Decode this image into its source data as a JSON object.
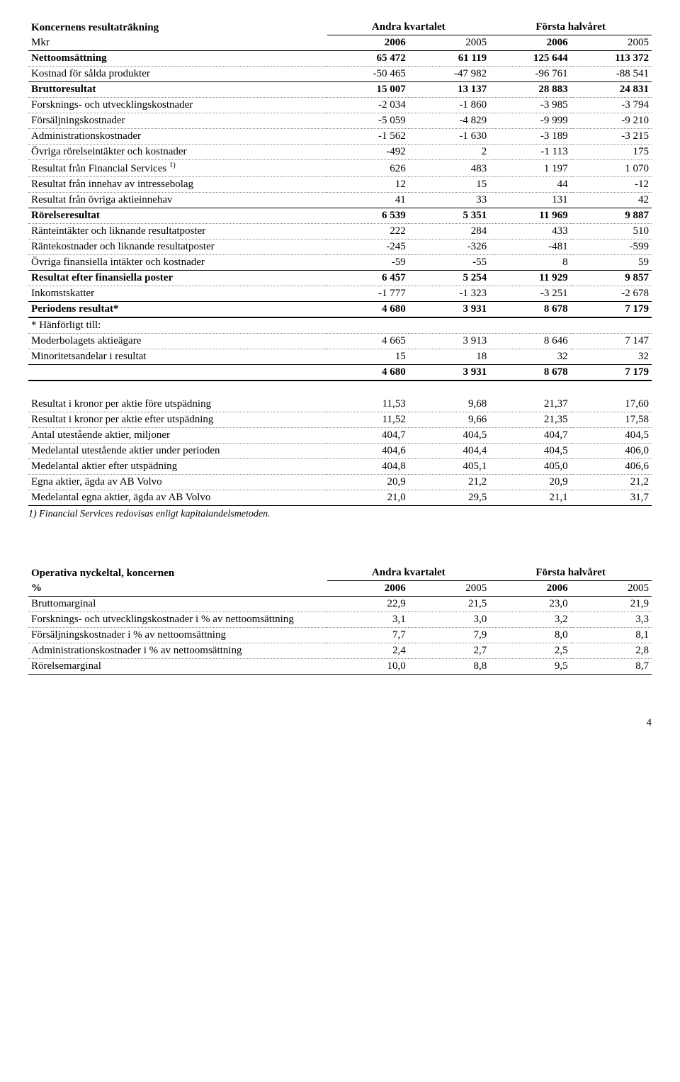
{
  "t1": {
    "title": "Koncernens resultaträkning",
    "colgroup1": "Andra kvartalet",
    "colgroup2": "Första halvåret",
    "subhead_label": "Mkr",
    "years": [
      "2006",
      "2005",
      "2006",
      "2005"
    ],
    "rows": [
      {
        "label": "Nettoomsättning",
        "bold": true,
        "vals": [
          "65 472",
          "61 119",
          "125 644",
          "113 372"
        ],
        "dotted": true
      },
      {
        "label": "Kostnad för sålda produkter",
        "vals": [
          "-50 465",
          "-47 982",
          "-96 761",
          "-88 541"
        ],
        "ul": true
      },
      {
        "label": "Bruttoresultat",
        "bold": true,
        "vals": [
          "15 007",
          "13 137",
          "28 883",
          "24 831"
        ],
        "dotted": true
      },
      {
        "label": "Forsknings- och utvecklingskostnader",
        "vals": [
          "-2 034",
          "-1 860",
          "-3 985",
          "-3 794"
        ],
        "dotted": true
      },
      {
        "label": "Försäljningskostnader",
        "vals": [
          "-5 059",
          "-4 829",
          "-9 999",
          "-9 210"
        ],
        "dotted": true
      },
      {
        "label": "Administrationskostnader",
        "vals": [
          "-1 562",
          "-1 630",
          "-3 189",
          "-3 215"
        ],
        "dotted": true
      },
      {
        "label": "Övriga rörelseintäkter och kostnader",
        "vals": [
          "-492",
          "2",
          "-1 113",
          "175"
        ],
        "dotted": true
      },
      {
        "label": "Resultat från Financial Services",
        "sup": "1)",
        "vals": [
          "626",
          "483",
          "1 197",
          "1 070"
        ],
        "dotted": true
      },
      {
        "label": "Resultat från innehav av intressebolag",
        "vals": [
          "12",
          "15",
          "44",
          "-12"
        ],
        "dotted": true
      },
      {
        "label": "Resultat från övriga aktieinnehav",
        "vals": [
          "41",
          "33",
          "131",
          "42"
        ],
        "ul": true
      },
      {
        "label": "Rörelseresultat",
        "bold": true,
        "vals": [
          "6 539",
          "5 351",
          "11 969",
          "9 887"
        ],
        "dotted": true
      },
      {
        "label": "Ränteintäkter och liknande resultatposter",
        "vals": [
          "222",
          "284",
          "433",
          "510"
        ],
        "dotted": true
      },
      {
        "label": "Räntekostnader och liknande resultatposter",
        "vals": [
          "-245",
          "-326",
          "-481",
          "-599"
        ],
        "dotted": true
      },
      {
        "label": "Övriga finansiella intäkter och kostnader",
        "vals": [
          "-59",
          "-55",
          "8",
          "59"
        ],
        "ul": true
      },
      {
        "label": "Resultat efter finansiella poster",
        "bold": true,
        "vals": [
          "6 457",
          "5 254",
          "11 929",
          "9 857"
        ],
        "dotted": true
      },
      {
        "label": "Inkomstskatter",
        "vals": [
          "-1 777",
          "-1 323",
          "-3 251",
          "-2 678"
        ],
        "ul": true
      },
      {
        "label": "Periodens resultat*",
        "bold": true,
        "vals": [
          "4 680",
          "3 931",
          "8 678",
          "7 179"
        ],
        "thick": true
      },
      {
        "label": "* Hänförligt till:",
        "vals": [
          "",
          "",
          "",
          ""
        ],
        "dotted": true
      },
      {
        "label": "Moderbolagets aktieägare",
        "vals": [
          "4 665",
          "3 913",
          "8 646",
          "7 147"
        ],
        "dotted": true
      },
      {
        "label": "Minoritetsandelar i resultat",
        "vals": [
          "15",
          "18",
          "32",
          "32"
        ],
        "ul": true
      },
      {
        "label": "",
        "bold": true,
        "vals": [
          "4 680",
          "3 931",
          "8 678",
          "7 179"
        ],
        "thick": true
      }
    ],
    "block2": [
      {
        "label": "Resultat i kronor per aktie före utspädning",
        "vals": [
          "11,53",
          "9,68",
          "21,37",
          "17,60"
        ],
        "dotted": true
      },
      {
        "label": "Resultat i kronor per aktie efter utspädning",
        "vals": [
          "11,52",
          "9,66",
          "21,35",
          "17,58"
        ],
        "dotted": true
      },
      {
        "label": "Antal utestående aktier, miljoner",
        "vals": [
          "404,7",
          "404,5",
          "404,7",
          "404,5"
        ],
        "dotted": true
      },
      {
        "label": "Medelantal utestående aktier under perioden",
        "vals": [
          "404,6",
          "404,4",
          "404,5",
          "406,0"
        ],
        "dotted": true
      },
      {
        "label": "Medelantal aktier efter utspädning",
        "vals": [
          "404,8",
          "405,1",
          "405,0",
          "406,6"
        ],
        "dotted": true
      },
      {
        "label": "Egna aktier, ägda av AB Volvo",
        "vals": [
          "20,9",
          "21,2",
          "20,9",
          "21,2"
        ],
        "dotted": true
      },
      {
        "label": "Medelantal egna aktier, ägda av AB Volvo",
        "vals": [
          "21,0",
          "29,5",
          "21,1",
          "31,7"
        ],
        "ul": true
      }
    ],
    "footnote": "1) Financial Services redovisas enligt kapitalandelsmetoden."
  },
  "t2": {
    "title": "Operativa nyckeltal, koncernen",
    "colgroup1": "Andra kvartalet",
    "colgroup2": "Första halvåret",
    "subhead_label": "%",
    "years": [
      "2006",
      "2005",
      "2006",
      "2005"
    ],
    "rows": [
      {
        "label": "Bruttomarginal",
        "vals": [
          "22,9",
          "21,5",
          "23,0",
          "21,9"
        ],
        "dotted": true
      },
      {
        "label": "Forsknings- och utvecklingskostnader i % av nettoomsättning",
        "vals": [
          "3,1",
          "3,0",
          "3,2",
          "3,3"
        ],
        "dotted": true
      },
      {
        "label": "Försäljningskostnader i % av nettoomsättning",
        "vals": [
          "7,7",
          "7,9",
          "8,0",
          "8,1"
        ],
        "dotted": true
      },
      {
        "label": "Administrationskostnader i % av nettoomsättning",
        "vals": [
          "2,4",
          "2,7",
          "2,5",
          "2,8"
        ],
        "dotted": true
      },
      {
        "label": "Rörelsemarginal",
        "vals": [
          "10,0",
          "8,8",
          "9,5",
          "8,7"
        ],
        "ul": true
      }
    ]
  },
  "page_number": "4"
}
